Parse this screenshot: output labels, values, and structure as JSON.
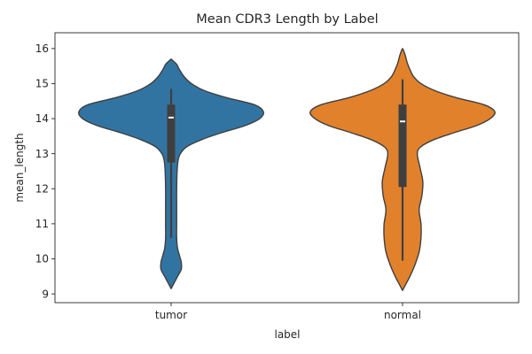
{
  "chart_data": {
    "type": "violin",
    "title": "Mean CDR3 Length by Label",
    "xlabel": "label",
    "ylabel": "mean_length",
    "categories": [
      "tumor",
      "normal"
    ],
    "ylim": [
      8.75,
      16.45
    ],
    "yticks": [
      9,
      10,
      11,
      12,
      13,
      14,
      15,
      16
    ],
    "grid": false,
    "legend": "none",
    "colors": [
      "#3274a1",
      "#e1812c"
    ],
    "outline_color": "#3f3f3f",
    "box_color": "#3f3f3f",
    "median_color": "#ffffff",
    "series": [
      {
        "category": "tumor",
        "min": 10.6,
        "q1": 12.75,
        "median": 14.03,
        "q3": 14.4,
        "max": 14.85,
        "density": [
          [
            9.15,
            0.0
          ],
          [
            9.3,
            0.03
          ],
          [
            9.5,
            0.07
          ],
          [
            9.7,
            0.11
          ],
          [
            9.9,
            0.11
          ],
          [
            10.1,
            0.09
          ],
          [
            10.3,
            0.07
          ],
          [
            10.6,
            0.06
          ],
          [
            11.0,
            0.06
          ],
          [
            11.5,
            0.06
          ],
          [
            12.0,
            0.06
          ],
          [
            12.5,
            0.065
          ],
          [
            12.8,
            0.075
          ],
          [
            13.0,
            0.1
          ],
          [
            13.2,
            0.17
          ],
          [
            13.4,
            0.33
          ],
          [
            13.6,
            0.55
          ],
          [
            13.8,
            0.8
          ],
          [
            14.0,
            0.96
          ],
          [
            14.2,
            1.0
          ],
          [
            14.4,
            0.9
          ],
          [
            14.6,
            0.6
          ],
          [
            14.8,
            0.36
          ],
          [
            15.0,
            0.22
          ],
          [
            15.2,
            0.14
          ],
          [
            15.4,
            0.09
          ],
          [
            15.55,
            0.06
          ],
          [
            15.65,
            0.02
          ],
          [
            15.7,
            0.0
          ]
        ]
      },
      {
        "category": "normal",
        "min": 9.95,
        "q1": 12.05,
        "median": 13.92,
        "q3": 14.4,
        "max": 15.12,
        "density": [
          [
            9.1,
            0.0
          ],
          [
            9.3,
            0.04
          ],
          [
            9.5,
            0.08
          ],
          [
            9.8,
            0.13
          ],
          [
            10.2,
            0.18
          ],
          [
            10.6,
            0.2
          ],
          [
            11.0,
            0.2
          ],
          [
            11.4,
            0.18
          ],
          [
            11.8,
            0.21
          ],
          [
            12.2,
            0.22
          ],
          [
            12.6,
            0.19
          ],
          [
            13.0,
            0.16
          ],
          [
            13.2,
            0.2
          ],
          [
            13.4,
            0.34
          ],
          [
            13.6,
            0.56
          ],
          [
            13.8,
            0.8
          ],
          [
            14.0,
            0.95
          ],
          [
            14.2,
            1.0
          ],
          [
            14.4,
            0.88
          ],
          [
            14.6,
            0.58
          ],
          [
            14.8,
            0.35
          ],
          [
            15.0,
            0.2
          ],
          [
            15.2,
            0.12
          ],
          [
            15.4,
            0.08
          ],
          [
            15.6,
            0.05
          ],
          [
            15.8,
            0.03
          ],
          [
            15.95,
            0.01
          ],
          [
            16.0,
            0.0
          ]
        ]
      }
    ]
  }
}
